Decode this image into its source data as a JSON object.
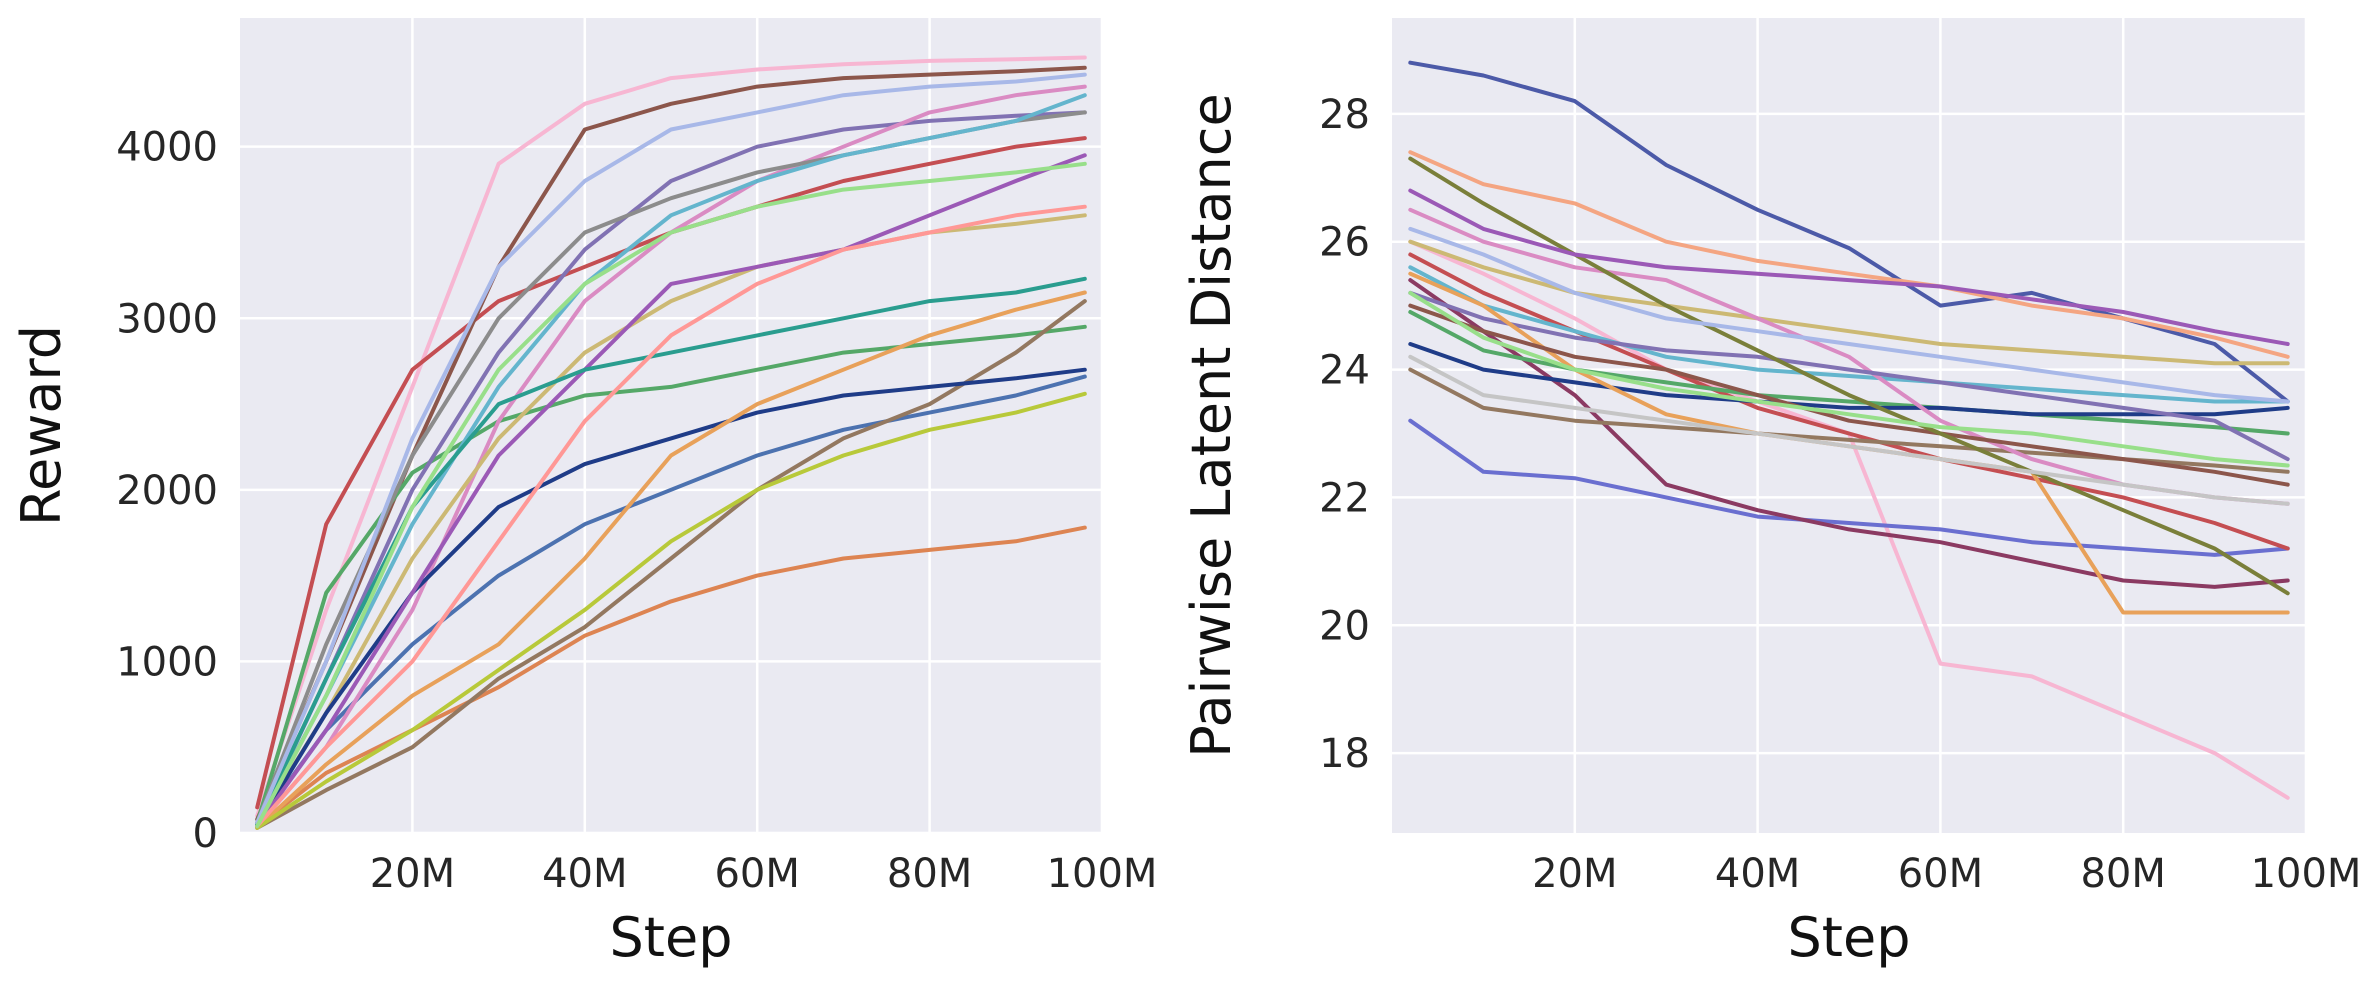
{
  "chart_data": [
    {
      "type": "line",
      "title": "",
      "xlabel": "Step",
      "ylabel": "Reward",
      "xlim": [
        0,
        100
      ],
      "ylim": [
        0,
        4750
      ],
      "xticks": [
        20,
        40,
        60,
        80,
        100
      ],
      "xtick_labels": [
        "20M",
        "40M",
        "60M",
        "80M",
        "100M"
      ],
      "yticks": [
        0,
        1000,
        2000,
        3000,
        4000
      ],
      "ytick_labels": [
        "0",
        "1000",
        "2000",
        "3000",
        "4000"
      ],
      "grid": true,
      "legend": "none",
      "x": [
        2,
        10,
        20,
        30,
        40,
        50,
        60,
        70,
        80,
        90,
        98
      ],
      "series": [
        {
          "color": "#f7b6d2",
          "values": [
            100,
            1300,
            2600,
            3900,
            4250,
            4400,
            4450,
            4480,
            4500,
            4510,
            4520
          ]
        },
        {
          "color": "#c44e52",
          "values": [
            150,
            1800,
            2700,
            3100,
            3300,
            3500,
            3650,
            3800,
            3900,
            4000,
            4050
          ]
        },
        {
          "color": "#8c564b",
          "values": [
            80,
            1000,
            2200,
            3300,
            4100,
            4250,
            4350,
            4400,
            4420,
            4440,
            4460
          ]
        },
        {
          "color": "#dd8452",
          "values": [
            40,
            350,
            600,
            850,
            1150,
            1350,
            1500,
            1600,
            1650,
            1700,
            1780
          ]
        },
        {
          "color": "#4c72b0",
          "values": [
            50,
            600,
            1100,
            1500,
            1800,
            2000,
            2200,
            2350,
            2450,
            2550,
            2660
          ]
        },
        {
          "color": "#55a868",
          "values": [
            60,
            1400,
            2100,
            2400,
            2550,
            2600,
            2700,
            2800,
            2850,
            2900,
            2950
          ]
        },
        {
          "color": "#8172b3",
          "values": [
            40,
            900,
            2000,
            2800,
            3400,
            3800,
            4000,
            4100,
            4150,
            4180,
            4200
          ]
        },
        {
          "color": "#937860",
          "values": [
            30,
            250,
            500,
            900,
            1200,
            1600,
            2000,
            2300,
            2500,
            2800,
            3100
          ]
        },
        {
          "color": "#da8bc3",
          "values": [
            40,
            500,
            1300,
            2400,
            3100,
            3500,
            3800,
            4000,
            4200,
            4300,
            4350
          ]
        },
        {
          "color": "#8c8c8c",
          "values": [
            60,
            1100,
            2200,
            3000,
            3500,
            3700,
            3850,
            3950,
            4050,
            4150,
            4200
          ]
        },
        {
          "color": "#ccb974",
          "values": [
            50,
            700,
            1600,
            2300,
            2800,
            3100,
            3300,
            3400,
            3500,
            3550,
            3600
          ]
        },
        {
          "color": "#64b5cd",
          "values": [
            50,
            800,
            1800,
            2600,
            3200,
            3600,
            3800,
            3950,
            4050,
            4150,
            4300
          ]
        },
        {
          "color": "#1f3c88",
          "values": [
            40,
            700,
            1400,
            1900,
            2150,
            2300,
            2450,
            2550,
            2600,
            2650,
            2700
          ]
        },
        {
          "color": "#e8a15a",
          "values": [
            30,
            400,
            800,
            1100,
            1600,
            2200,
            2500,
            2700,
            2900,
            3050,
            3150
          ]
        },
        {
          "color": "#b8c93a",
          "values": [
            30,
            300,
            600,
            950,
            1300,
            1700,
            2000,
            2200,
            2350,
            2450,
            2560
          ]
        },
        {
          "color": "#9b59b6",
          "values": [
            40,
            600,
            1400,
            2200,
            2700,
            3200,
            3300,
            3400,
            3600,
            3800,
            3950
          ]
        },
        {
          "color": "#2a9d8f",
          "values": [
            50,
            900,
            1900,
            2500,
            2700,
            2800,
            2900,
            3000,
            3100,
            3150,
            3230
          ]
        },
        {
          "color": "#a8b8e8",
          "values": [
            60,
            1000,
            2300,
            3300,
            3800,
            4100,
            4200,
            4300,
            4350,
            4380,
            4420
          ]
        },
        {
          "color": "#ff9896",
          "values": [
            40,
            500,
            1000,
            1700,
            2400,
            2900,
            3200,
            3400,
            3500,
            3600,
            3650
          ]
        },
        {
          "color": "#98df8a",
          "values": [
            40,
            800,
            1900,
            2700,
            3200,
            3500,
            3650,
            3750,
            3800,
            3850,
            3900
          ]
        }
      ]
    },
    {
      "type": "line",
      "title": "",
      "xlabel": "Step",
      "ylabel": "Pairwise Latent Distance",
      "xlim": [
        0,
        100
      ],
      "ylim": [
        16.75,
        29.5
      ],
      "xticks": [
        20,
        40,
        60,
        80,
        100
      ],
      "xtick_labels": [
        "20M",
        "40M",
        "60M",
        "80M",
        "100M"
      ],
      "yticks": [
        18,
        20,
        22,
        24,
        26,
        28
      ],
      "ytick_labels": [
        "18",
        "20",
        "22",
        "24",
        "26",
        "28"
      ],
      "grid": true,
      "legend": "none",
      "x": [
        2,
        10,
        20,
        30,
        40,
        50,
        60,
        70,
        80,
        90,
        98
      ],
      "series": [
        {
          "color": "#4c5aa8",
          "values": [
            28.8,
            28.6,
            28.2,
            27.2,
            26.5,
            25.9,
            25.0,
            25.2,
            24.8,
            24.4,
            23.5
          ]
        },
        {
          "color": "#f7b6d2",
          "values": [
            26.0,
            25.5,
            24.8,
            24.0,
            23.5,
            23.0,
            19.4,
            19.2,
            18.6,
            18.0,
            17.3
          ]
        },
        {
          "color": "#f4a582",
          "values": [
            27.4,
            26.9,
            26.6,
            26.0,
            25.7,
            25.5,
            25.3,
            25.0,
            24.8,
            24.5,
            24.2
          ]
        },
        {
          "color": "#6a6fd0",
          "values": [
            23.2,
            22.4,
            22.3,
            22.0,
            21.7,
            21.6,
            21.5,
            21.3,
            21.2,
            21.1,
            21.2
          ]
        },
        {
          "color": "#c44e52",
          "values": [
            25.8,
            25.2,
            24.6,
            24.0,
            23.4,
            23.0,
            22.6,
            22.3,
            22.0,
            21.6,
            21.2
          ]
        },
        {
          "color": "#8b3a62",
          "values": [
            25.4,
            24.6,
            23.6,
            22.2,
            21.8,
            21.5,
            21.3,
            21.0,
            20.7,
            20.6,
            20.7
          ]
        },
        {
          "color": "#55a868",
          "values": [
            24.9,
            24.3,
            24.0,
            23.8,
            23.6,
            23.5,
            23.4,
            23.3,
            23.2,
            23.1,
            23.0
          ]
        },
        {
          "color": "#ccb974",
          "values": [
            26.0,
            25.6,
            25.2,
            25.0,
            24.8,
            24.6,
            24.4,
            24.3,
            24.2,
            24.1,
            24.1
          ]
        },
        {
          "color": "#64b5cd",
          "values": [
            25.6,
            25.0,
            24.6,
            24.2,
            24.0,
            23.9,
            23.8,
            23.7,
            23.6,
            23.5,
            23.5
          ]
        },
        {
          "color": "#1f3c88",
          "values": [
            24.4,
            24.0,
            23.8,
            23.6,
            23.5,
            23.4,
            23.4,
            23.3,
            23.3,
            23.3,
            23.4
          ]
        },
        {
          "color": "#937860",
          "values": [
            24.0,
            23.4,
            23.2,
            23.1,
            23.0,
            22.9,
            22.8,
            22.7,
            22.6,
            22.5,
            22.4
          ]
        },
        {
          "color": "#da8bc3",
          "values": [
            26.5,
            26.0,
            25.6,
            25.4,
            24.8,
            24.2,
            23.2,
            22.6,
            22.2,
            22.0,
            21.9
          ]
        },
        {
          "color": "#8172b3",
          "values": [
            25.2,
            24.8,
            24.5,
            24.3,
            24.2,
            24.0,
            23.8,
            23.6,
            23.4,
            23.2,
            22.6
          ]
        },
        {
          "color": "#e8a15a",
          "values": [
            25.5,
            25.0,
            24.0,
            23.3,
            23.0,
            22.8,
            22.6,
            22.4,
            20.2,
            20.2,
            20.2
          ]
        },
        {
          "color": "#8c564b",
          "values": [
            25.0,
            24.6,
            24.2,
            24.0,
            23.6,
            23.2,
            23.0,
            22.8,
            22.6,
            22.4,
            22.2
          ]
        },
        {
          "color": "#7a7f3a",
          "values": [
            27.3,
            26.6,
            25.8,
            25.0,
            24.3,
            23.6,
            23.0,
            22.4,
            21.8,
            21.2,
            20.5
          ]
        },
        {
          "color": "#a8b8e8",
          "values": [
            26.2,
            25.8,
            25.2,
            24.8,
            24.6,
            24.4,
            24.2,
            24.0,
            23.8,
            23.6,
            23.5
          ]
        },
        {
          "color": "#98df8a",
          "values": [
            25.2,
            24.5,
            24.0,
            23.7,
            23.5,
            23.3,
            23.1,
            23.0,
            22.8,
            22.6,
            22.5
          ]
        },
        {
          "color": "#c5c5c5",
          "values": [
            24.2,
            23.6,
            23.4,
            23.2,
            23.0,
            22.8,
            22.6,
            22.4,
            22.2,
            22.0,
            21.9
          ]
        },
        {
          "color": "#9b59b6",
          "values": [
            26.8,
            26.2,
            25.8,
            25.6,
            25.5,
            25.4,
            25.3,
            25.1,
            24.9,
            24.6,
            24.4
          ]
        }
      ]
    }
  ]
}
